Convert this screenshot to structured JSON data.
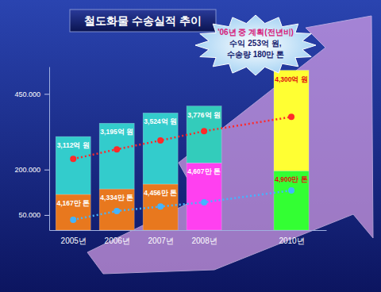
{
  "chart_data": {
    "type": "bar",
    "title": "철도화물 수송실적 추이",
    "x": [
      2005,
      2006,
      2007,
      2008,
      2010
    ],
    "xlim": [
      2004.45,
      2010.8
    ],
    "xticks": [
      {
        "value": 2005,
        "label": "2005년"
      },
      {
        "value": 2006,
        "label": "2006년"
      },
      {
        "value": 2007,
        "label": "2007년"
      },
      {
        "value": 2008,
        "label": "2008년"
      },
      {
        "value": 2010,
        "label": "2010년"
      }
    ],
    "ylim": [
      0,
      540000
    ],
    "yticks": [
      {
        "value": 50000,
        "label": "50.000"
      },
      {
        "value": 200000,
        "label": "200.000"
      },
      {
        "value": 450000,
        "label": "450.000"
      }
    ],
    "stacked": true,
    "grid": false,
    "series": [
      {
        "type": "bar",
        "colors": [
          "#e8781e",
          "#e8781e",
          "#e8781e",
          "#ff40f0",
          "#33ff33"
        ],
        "values": [
          118000,
          136000,
          152000,
          222000,
          196000
        ]
      },
      {
        "type": "bar",
        "colors": [
          "#33cccc",
          "#33cccc",
          "#33cccc",
          "#33ccbb",
          "#ffff33"
        ],
        "values": [
          191000,
          217000,
          235000,
          188000,
          332000
        ]
      },
      {
        "type": "line",
        "color": "#ff2a2a",
        "marker": "circle",
        "line_style": "dotted",
        "values": [
          235000,
          267000,
          296000,
          327000,
          374000
        ]
      },
      {
        "type": "line",
        "color": "#44b4ff",
        "marker": "circle",
        "line_style": "dotted",
        "values": [
          34000,
          63000,
          78000,
          92000,
          131000
        ]
      }
    ],
    "annotations": [
      {
        "text": "3,112억 원",
        "series": 1,
        "index": 0
      },
      {
        "text": "3,195억 원",
        "series": 1,
        "index": 1
      },
      {
        "text": "3,524억 원",
        "series": 1,
        "index": 2
      },
      {
        "text": "3,776억 원",
        "series": 1,
        "index": 3
      },
      {
        "text": "4,300억 원",
        "series": 1,
        "index": 4
      },
      {
        "text": "4,167만 톤",
        "series": 0,
        "index": 0
      },
      {
        "text": "4,334만 톤",
        "series": 0,
        "index": 1
      },
      {
        "text": "4,456만 톤",
        "series": 0,
        "index": 2
      },
      {
        "text": "4,607만 톤",
        "series": 0,
        "index": 3
      },
      {
        "text": "4,900만 톤",
        "series": 0,
        "index": 4
      }
    ],
    "callout": [
      "'06년 중 계획(전년비)",
      "수익 253억 원,",
      "수송량 180만 톤"
    ]
  }
}
